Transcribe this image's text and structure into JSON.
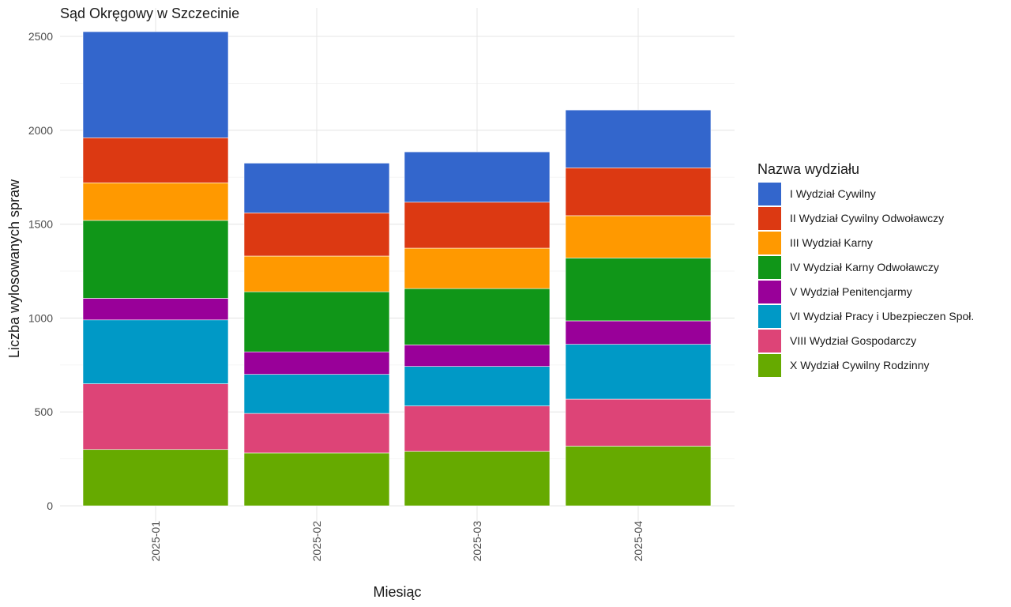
{
  "chart_data": {
    "type": "bar",
    "stacked": true,
    "title": "Sąd Okręgowy w Szczecinie",
    "xlabel": "Miesiąc",
    "ylabel": "Liczba wylosowanych spraw",
    "ylim": [
      0,
      2550
    ],
    "yticks": [
      0,
      500,
      1000,
      1500,
      2000,
      2500
    ],
    "grid": true,
    "legend_title": "Nazwa wydziału",
    "legend_position": "right",
    "categories": [
      "2025-01",
      "2025-02",
      "2025-03",
      "2025-04"
    ],
    "series": [
      {
        "name": "X Wydział Cywilny Rodzinny",
        "color": "#66AA00",
        "values": [
          300,
          282,
          290,
          318
        ]
      },
      {
        "name": "VIII Wydział Gospodarczy",
        "color": "#DD4477",
        "values": [
          350,
          210,
          242,
          250
        ]
      },
      {
        "name": "VI Wydział Pracy i Ubezpieczen Społ.",
        "color": "#0099C6",
        "values": [
          340,
          208,
          210,
          292
        ]
      },
      {
        "name": "V Wydział Penitencjarmy",
        "color": "#990099",
        "values": [
          115,
          120,
          115,
          125
        ]
      },
      {
        "name": "IV Wydział Karny Odwoławczy",
        "color": "#109618",
        "values": [
          415,
          320,
          300,
          335
        ]
      },
      {
        "name": "III Wydział Karny",
        "color": "#FF9900",
        "values": [
          200,
          190,
          215,
          225
        ]
      },
      {
        "name": "II Wydział Cywilny Odwoławczy",
        "color": "#DC3912",
        "values": [
          240,
          230,
          245,
          255
        ]
      },
      {
        "name": "I Wydział Cywilny",
        "color": "#3366CC",
        "values": [
          565,
          265,
          268,
          308
        ]
      }
    ],
    "legend_order": [
      "I Wydział Cywilny",
      "II Wydział Cywilny Odwoławczy",
      "III Wydział Karny",
      "IV Wydział Karny Odwoławczy",
      "V Wydział Penitencjarmy",
      "VI Wydział Pracy i Ubezpieczen Społ.",
      "VIII Wydział Gospodarczy",
      "X Wydział Cywilny Rodzinny"
    ]
  }
}
